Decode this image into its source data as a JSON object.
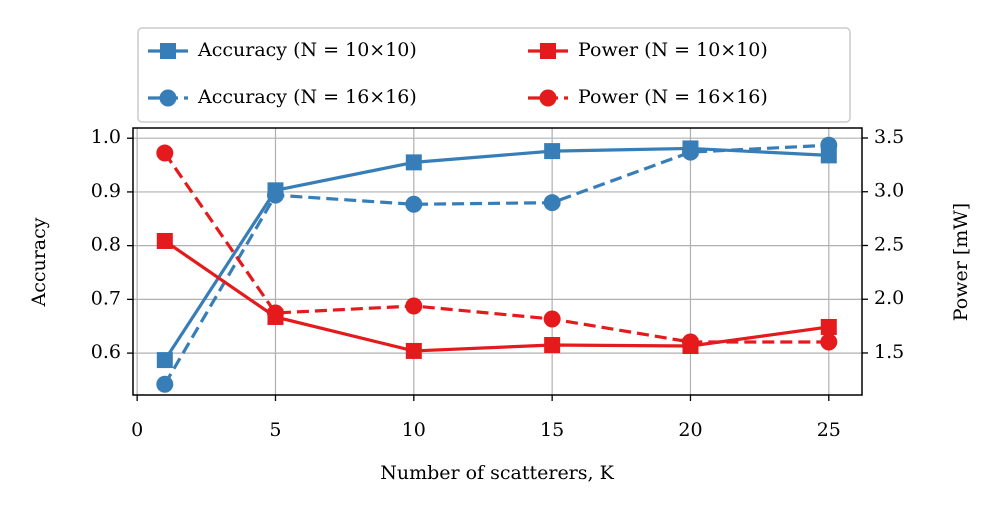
{
  "chart_data": {
    "type": "line",
    "x": [
      1,
      5,
      10,
      15,
      20,
      25
    ],
    "xlabel": "Number of scatterers, K",
    "ylabel": "Accuracy",
    "y2label": "Power [mW]",
    "xlim": [
      -0.15,
      26.2
    ],
    "ylim": [
      0.522,
      1.019
    ],
    "y2lim": [
      1.109,
      3.593
    ],
    "xticks": [
      0,
      5,
      10,
      15,
      20,
      25
    ],
    "yticks": [
      0.6,
      0.7,
      0.8,
      0.9,
      {
        "value": 1,
        "label": "1.0"
      }
    ],
    "y2ticks": [
      1.5,
      {
        "value": 2,
        "label": "2.0"
      },
      2.5,
      {
        "value": 3,
        "label": "3.0"
      },
      3.5
    ],
    "grid": true,
    "legend": "upper center",
    "series": [
      {
        "name": "Accuracy (N = 10×10)",
        "color": "#377eb8",
        "linestyle": "solid",
        "marker": "square",
        "values": [
          0.587,
          0.903,
          0.955,
          0.976,
          0.981,
          0.968
        ]
      },
      {
        "name": "Accuracy (N = 16×16)",
        "color": "#377eb8",
        "linestyle": "dashed",
        "marker": "circle",
        "values": [
          0.542,
          0.894,
          0.877,
          0.88,
          0.974,
          0.987
        ]
      },
      {
        "name": "Power (N = 10×10)",
        "color": "#e41a1c",
        "linestyle": "solid",
        "marker": "square",
        "axis": "y2",
        "values": [
          2.542,
          1.835,
          1.519,
          1.574,
          1.565,
          1.742
        ]
      },
      {
        "name": "Power (N = 16×16)",
        "color": "#e41a1c",
        "linestyle": "dashed",
        "marker": "circle",
        "axis": "y2",
        "values": [
          3.36,
          1.872,
          1.937,
          1.816,
          1.602,
          1.602
        ]
      }
    ]
  }
}
